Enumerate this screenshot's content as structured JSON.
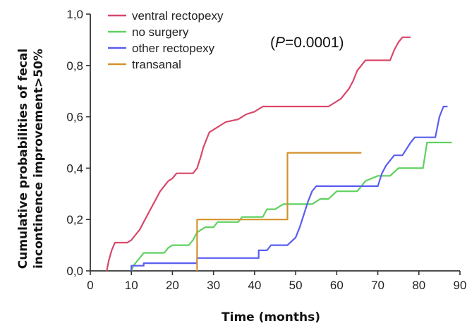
{
  "chart_data": {
    "type": "line",
    "xlabel": "Time (months)",
    "ylabel_lines": [
      "Cumulative probabilities of fecal",
      "incontinence improvement>50%"
    ],
    "xlim": [
      0,
      90
    ],
    "ylim": [
      0,
      1
    ],
    "x_ticks": [
      "0",
      "10",
      "20",
      "30",
      "40",
      "50",
      "60",
      "70",
      "80",
      "90"
    ],
    "y_ticks": [
      "0,0",
      "0,2",
      "0,4",
      "0,6",
      "0,8",
      "1,0"
    ],
    "grid": false,
    "legend_position": "top-left",
    "annotation": {
      "open": "(",
      "italic": "P",
      "rest": "=0.0001)"
    },
    "series": [
      {
        "name": "ventral rectopexy",
        "color": "#d9476a",
        "points": [
          [
            4,
            0
          ],
          [
            4.5,
            0.04
          ],
          [
            5.2,
            0.08
          ],
          [
            6,
            0.11
          ],
          [
            9,
            0.11
          ],
          [
            10,
            0.12
          ],
          [
            11,
            0.14
          ],
          [
            12,
            0.16
          ],
          [
            13,
            0.19
          ],
          [
            14,
            0.22
          ],
          [
            15,
            0.25
          ],
          [
            16,
            0.28
          ],
          [
            17,
            0.31
          ],
          [
            18,
            0.33
          ],
          [
            19,
            0.35
          ],
          [
            20,
            0.36
          ],
          [
            21,
            0.38
          ],
          [
            25,
            0.38
          ],
          [
            26,
            0.4
          ],
          [
            27,
            0.45
          ],
          [
            27.5,
            0.48
          ],
          [
            28,
            0.5
          ],
          [
            29,
            0.54
          ],
          [
            30,
            0.55
          ],
          [
            31,
            0.56
          ],
          [
            32,
            0.57
          ],
          [
            33,
            0.58
          ],
          [
            36,
            0.59
          ],
          [
            38,
            0.61
          ],
          [
            40,
            0.62
          ],
          [
            42,
            0.64
          ],
          [
            58,
            0.64
          ],
          [
            61,
            0.67
          ],
          [
            63,
            0.71
          ],
          [
            64,
            0.74
          ],
          [
            65,
            0.78
          ],
          [
            67,
            0.82
          ],
          [
            73,
            0.82
          ],
          [
            74,
            0.86
          ],
          [
            75,
            0.89
          ],
          [
            76,
            0.91
          ],
          [
            78,
            0.91
          ]
        ]
      },
      {
        "name": "no surgery",
        "color": "#5fd15f",
        "points": [
          [
            10,
            0
          ],
          [
            10.5,
            0.02
          ],
          [
            12,
            0.05
          ],
          [
            13,
            0.07
          ],
          [
            18,
            0.07
          ],
          [
            19,
            0.09
          ],
          [
            20,
            0.1
          ],
          [
            24,
            0.1
          ],
          [
            25,
            0.12
          ],
          [
            26,
            0.15
          ],
          [
            28,
            0.17
          ],
          [
            30,
            0.17
          ],
          [
            31,
            0.19
          ],
          [
            36,
            0.19
          ],
          [
            37,
            0.21
          ],
          [
            42,
            0.21
          ],
          [
            43,
            0.24
          ],
          [
            45,
            0.24
          ],
          [
            47,
            0.26
          ],
          [
            54,
            0.26
          ],
          [
            56,
            0.28
          ],
          [
            58,
            0.28
          ],
          [
            60,
            0.31
          ],
          [
            65,
            0.31
          ],
          [
            67,
            0.35
          ],
          [
            70,
            0.37
          ],
          [
            73,
            0.37
          ],
          [
            75,
            0.4
          ],
          [
            81,
            0.4
          ],
          [
            82,
            0.5
          ],
          [
            88,
            0.5
          ]
        ]
      },
      {
        "name": "other rectopexy",
        "color": "#5a5ef0",
        "points": [
          [
            10,
            0
          ],
          [
            10,
            0.02
          ],
          [
            13,
            0.02
          ],
          [
            13,
            0.03
          ],
          [
            26,
            0.03
          ],
          [
            26,
            0.05
          ],
          [
            41,
            0.05
          ],
          [
            41,
            0.08
          ],
          [
            43,
            0.08
          ],
          [
            44,
            0.1
          ],
          [
            48,
            0.1
          ],
          [
            50,
            0.13
          ],
          [
            51,
            0.17
          ],
          [
            52,
            0.22
          ],
          [
            53,
            0.27
          ],
          [
            54,
            0.31
          ],
          [
            55,
            0.33
          ],
          [
            70,
            0.33
          ],
          [
            71,
            0.38
          ],
          [
            72,
            0.41
          ],
          [
            74,
            0.45
          ],
          [
            76,
            0.45
          ],
          [
            78,
            0.5
          ],
          [
            79,
            0.52
          ],
          [
            84,
            0.52
          ],
          [
            85,
            0.6
          ],
          [
            86,
            0.64
          ],
          [
            87,
            0.64
          ]
        ]
      },
      {
        "name": "transanal",
        "color": "#d4922c",
        "points": [
          [
            26,
            0
          ],
          [
            26,
            0.2
          ],
          [
            48,
            0.2
          ],
          [
            48,
            0.46
          ],
          [
            66,
            0.46
          ]
        ]
      }
    ]
  }
}
